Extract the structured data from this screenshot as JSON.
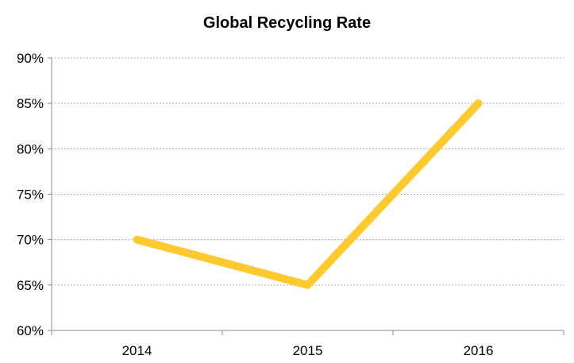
{
  "chart_data": {
    "type": "line",
    "title": "Global Recycling Rate",
    "xlabel": "",
    "ylabel": "",
    "categories": [
      "2014",
      "2015",
      "2016"
    ],
    "series": [
      {
        "values": [
          0.7,
          0.65,
          0.85
        ],
        "color": "#FFCA2F"
      }
    ],
    "ylim": [
      0.6,
      0.9
    ],
    "yticks": [
      0.6,
      0.65,
      0.7,
      0.75,
      0.8,
      0.85,
      0.9
    ],
    "ytick_labels": [
      "60%",
      "65%",
      "70%",
      "75%",
      "80%",
      "85%",
      "90%"
    ],
    "grid": true,
    "grid_style": "dotted",
    "legend": "none"
  }
}
